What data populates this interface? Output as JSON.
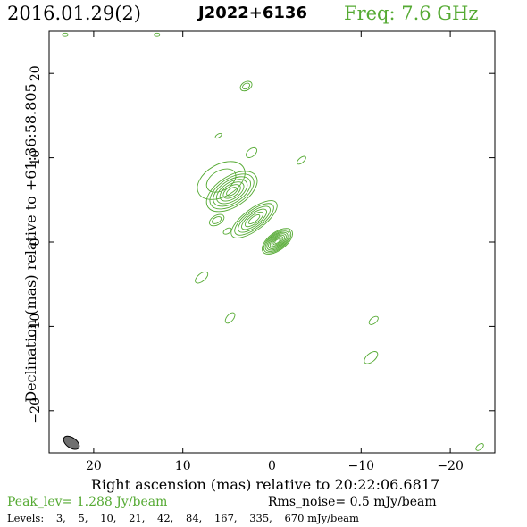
{
  "header": {
    "date": "2016.01.29(2)",
    "source": "J2022+6136",
    "frequency": "Freq: 7.6 GHz"
  },
  "axes": {
    "xlabel": "Right ascension (mas) relative to 20:22:06.6817",
    "ylabel": "Declination (mas) relative to +61:36:58.805",
    "xlim": [
      25,
      -25
    ],
    "ylim": [
      -25,
      25
    ],
    "xticks": [
      20,
      10,
      0,
      -10,
      -20
    ],
    "yticks": [
      20,
      10,
      0,
      -10,
      -20
    ],
    "xtick_labels": [
      "20",
      "10",
      "0",
      "−10",
      "−20"
    ],
    "ytick_labels": [
      "20",
      "10",
      "0",
      "−10",
      "−20"
    ]
  },
  "footer": {
    "peak": "Peak_lev=  1.288 Jy/beam",
    "rms": "Rms_noise=  0.5 mJy/beam",
    "levels_label": "Levels:",
    "levels": [
      "3,",
      "5,",
      "10,",
      "21,",
      "42,",
      "84,",
      "167,",
      "335,",
      "670 mJy/beam"
    ]
  },
  "colors": {
    "contour": "#55aa33",
    "beam": "#707070",
    "text_accent": "#55aa33"
  },
  "map_data": {
    "beam": {
      "x": 22.5,
      "y": -23.8,
      "major": 1.0,
      "minor": 0.6,
      "angle_deg": 35
    },
    "components": [
      {
        "name": "core",
        "x": -0.6,
        "y": 0.1,
        "a": 2.0,
        "b": 1.05,
        "pa": 37,
        "levels": 9
      },
      {
        "name": "jet-inner",
        "x": 2.0,
        "y": 2.7,
        "a": 3.1,
        "b": 1.25,
        "pa": 37,
        "levels": 6
      },
      {
        "name": "knot",
        "x": 4.5,
        "y": 6.0,
        "a": 3.2,
        "b": 1.8,
        "pa": 33,
        "levels": 7
      },
      {
        "name": "halo",
        "x": 5.7,
        "y": 7.3,
        "a": 2.9,
        "b": 1.9,
        "pa": 30,
        "levels": 2
      }
    ],
    "islands": [
      {
        "x": 2.9,
        "y": 18.5,
        "a": 0.7,
        "b": 0.5,
        "pa": 30,
        "levels": 2
      },
      {
        "x": 6.0,
        "y": 12.6,
        "a": 0.4,
        "b": 0.2,
        "pa": 30,
        "levels": 1
      },
      {
        "x": 2.3,
        "y": 10.6,
        "a": 0.7,
        "b": 0.45,
        "pa": 40,
        "levels": 1
      },
      {
        "x": -3.3,
        "y": 9.7,
        "a": 0.6,
        "b": 0.3,
        "pa": 40,
        "levels": 1
      },
      {
        "x": 6.2,
        "y": 2.6,
        "a": 0.9,
        "b": 0.55,
        "pa": 30,
        "levels": 2
      },
      {
        "x": 5.0,
        "y": 1.3,
        "a": 0.5,
        "b": 0.3,
        "pa": 30,
        "levels": 1
      },
      {
        "x": 7.9,
        "y": -4.2,
        "a": 0.85,
        "b": 0.45,
        "pa": 40,
        "levels": 1
      },
      {
        "x": 4.7,
        "y": -9.0,
        "a": 0.7,
        "b": 0.4,
        "pa": 50,
        "levels": 1
      },
      {
        "x": -11.4,
        "y": -9.3,
        "a": 0.6,
        "b": 0.35,
        "pa": 40,
        "levels": 1
      },
      {
        "x": -11.1,
        "y": -13.7,
        "a": 0.9,
        "b": 0.5,
        "pa": 40,
        "levels": 1
      },
      {
        "x": -23.3,
        "y": -24.3,
        "a": 0.5,
        "b": 0.3,
        "pa": 40,
        "levels": 1
      },
      {
        "x": 23.2,
        "y": 24.6,
        "a": 0.3,
        "b": 0.15,
        "pa": 0,
        "levels": 1
      },
      {
        "x": 12.9,
        "y": 24.6,
        "a": 0.3,
        "b": 0.15,
        "pa": 0,
        "levels": 1
      }
    ]
  }
}
